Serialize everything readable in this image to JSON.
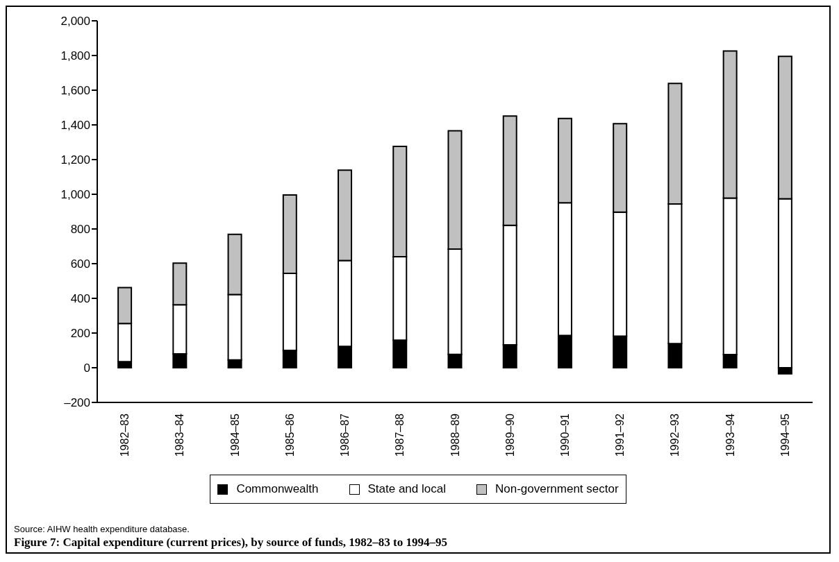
{
  "chart_data": {
    "type": "bar",
    "title": "Figure 7:  Capital expenditure (current prices), by source of funds, 1982–83 to 1994–95",
    "annotations": [
      "Source:  AIHW health expenditure database."
    ],
    "categories": [
      "1982–83",
      "1983–84",
      "1984–85",
      "1985–86",
      "1986–87",
      "1987–88",
      "1988–89",
      "1989–90",
      "1990–91",
      "1991–92",
      "1992–93",
      "1993–94",
      "1994–95"
    ],
    "stacked": true,
    "series": [
      {
        "name": "Commonwealth",
        "color": "#000000",
        "values": [
          35,
          80,
          45,
          100,
          123,
          159,
          77,
          132,
          186,
          182,
          139,
          76,
          -35
        ]
      },
      {
        "name": "State and local",
        "color": "#ffffff",
        "values": [
          220,
          283,
          377,
          444,
          495,
          481,
          607,
          689,
          765,
          715,
          805,
          902,
          974
        ]
      },
      {
        "name": "Non-government sector",
        "color": "#c0c0c0",
        "values": [
          207,
          240,
          347,
          452,
          521,
          636,
          682,
          630,
          486,
          510,
          695,
          848,
          821
        ]
      }
    ],
    "ylim": [
      -200,
      2000
    ],
    "yticks": [
      {
        "value": -200,
        "label": "–200"
      },
      0,
      {
        "value": 200,
        "label": "200"
      },
      400,
      600,
      800,
      {
        "value": 1000,
        "label": "1,000"
      },
      {
        "value": 1200,
        "label": "1,200"
      },
      {
        "value": 1400,
        "label": "1,400"
      },
      {
        "value": 1600,
        "label": "1,600"
      },
      {
        "value": 1800,
        "label": "1,800"
      },
      {
        "value": 2000,
        "label": "2,000"
      }
    ],
    "grid": false,
    "legend": "bottom"
  }
}
